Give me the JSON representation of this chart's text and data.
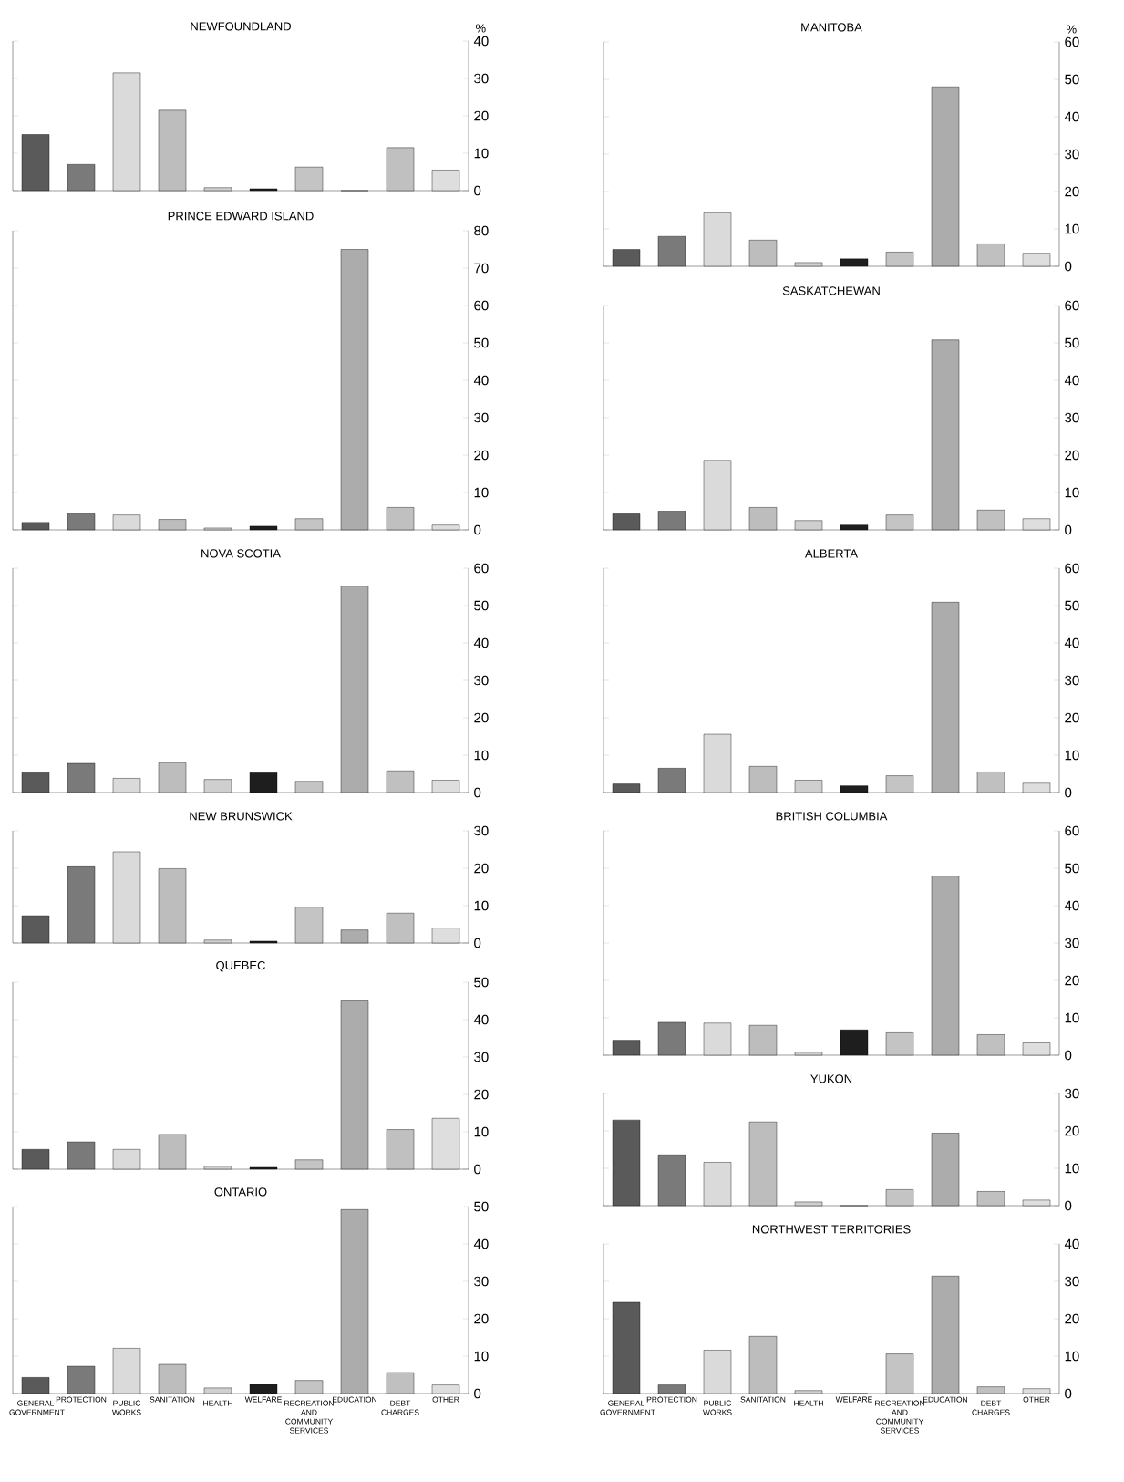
{
  "chart_data": [
    {
      "type": "bar",
      "title": "NEWFOUNDLAND",
      "ylabel": "%",
      "categories": [
        null,
        null,
        null,
        null,
        null,
        null,
        null,
        null,
        null,
        null
      ],
      "values": [
        15,
        7,
        31.5,
        21.5,
        0.8,
        0.5,
        6.3,
        0,
        11.5,
        5.5
      ],
      "colors": [
        "#5a5a5a",
        "#7a7a7a",
        "#dadada",
        "#bdbdbd",
        "#cfcfcf",
        "#1e1e1e",
        "#c4c4c4",
        "#acacac",
        "#c0c0c0",
        "#dedede"
      ],
      "ylim": [
        0,
        40
      ],
      "yticks": [
        0,
        10,
        20,
        30,
        40
      ],
      "tick_labels": "y"
    },
    {
      "type": "bar",
      "title": "PRINCE EDWARD ISLAND",
      "categories": [
        null,
        null,
        null,
        null,
        null,
        null,
        null,
        null,
        null,
        null
      ],
      "values": [
        2,
        4.3,
        4,
        2.8,
        0.5,
        1,
        3,
        75,
        6,
        1.3
      ],
      "colors": [
        "#5a5a5a",
        "#7a7a7a",
        "#dadada",
        "#bdbdbd",
        "#cfcfcf",
        "#1e1e1e",
        "#c4c4c4",
        "#acacac",
        "#c0c0c0",
        "#dedede"
      ],
      "ylim": [
        0,
        80
      ],
      "yticks": [
        0,
        10,
        20,
        30,
        40,
        50,
        60,
        70,
        80
      ],
      "tick_labels": "y"
    },
    {
      "type": "bar",
      "title": "NOVA SCOTIA",
      "categories": [
        null,
        null,
        null,
        null,
        null,
        null,
        null,
        null,
        null,
        null
      ],
      "values": [
        5.3,
        7.8,
        3.8,
        8,
        3.5,
        5.3,
        3,
        55.2,
        5.8,
        3.3
      ],
      "colors": [
        "#5a5a5a",
        "#7a7a7a",
        "#dadada",
        "#bdbdbd",
        "#cfcfcf",
        "#1e1e1e",
        "#c4c4c4",
        "#acacac",
        "#c0c0c0",
        "#dedede"
      ],
      "ylim": [
        0,
        60
      ],
      "yticks": [
        0,
        10,
        20,
        30,
        40,
        50,
        60
      ],
      "tick_labels": "y"
    },
    {
      "type": "bar",
      "title": "NEW BRUNSWICK",
      "categories": [
        null,
        null,
        null,
        null,
        null,
        null,
        null,
        null,
        null,
        null
      ],
      "values": [
        7.3,
        20.4,
        24.4,
        19.9,
        0.8,
        0.5,
        9.6,
        3.5,
        8,
        4
      ],
      "colors": [
        "#5a5a5a",
        "#7a7a7a",
        "#dadada",
        "#bdbdbd",
        "#cfcfcf",
        "#1e1e1e",
        "#c4c4c4",
        "#acacac",
        "#c0c0c0",
        "#dedede"
      ],
      "ylim": [
        0,
        30
      ],
      "yticks": [
        0,
        10,
        20,
        30
      ],
      "tick_labels": "y"
    },
    {
      "type": "bar",
      "title": "QUEBEC",
      "categories": [
        null,
        null,
        null,
        null,
        null,
        null,
        null,
        null,
        null,
        null
      ],
      "values": [
        5.3,
        7.3,
        5.3,
        9.3,
        0.8,
        0.5,
        2.5,
        45,
        10.6,
        13.6
      ],
      "colors": [
        "#5a5a5a",
        "#7a7a7a",
        "#dadada",
        "#bdbdbd",
        "#cfcfcf",
        "#1e1e1e",
        "#c4c4c4",
        "#acacac",
        "#c0c0c0",
        "#dedede"
      ],
      "ylim": [
        0,
        50
      ],
      "yticks": [
        0,
        10,
        20,
        30,
        40,
        50
      ],
      "tick_labels": "y"
    },
    {
      "type": "bar",
      "title": "ONTARIO",
      "categories": [
        "GENERAL GOVERNMENT",
        "PROTECTION",
        "PUBLIC WORKS",
        "SANITATION",
        "HEALTH",
        "WELFARE",
        "RECREATION AND COMMUNITY SERVICES",
        "EDUCATION",
        "DEBT CHARGES",
        "OTHER"
      ],
      "values": [
        4.3,
        7.3,
        12.1,
        7.8,
        1.5,
        2.5,
        3.5,
        49.2,
        5.6,
        2.3
      ],
      "colors": [
        "#5a5a5a",
        "#7a7a7a",
        "#dadada",
        "#bdbdbd",
        "#cfcfcf",
        "#1e1e1e",
        "#c4c4c4",
        "#acacac",
        "#c0c0c0",
        "#dedede"
      ],
      "ylim": [
        0,
        50
      ],
      "yticks": [
        0,
        10,
        20,
        30,
        40,
        50
      ]
    },
    {
      "type": "bar",
      "title": "MANITOBA",
      "ylabel": "%",
      "categories": [
        null,
        null,
        null,
        null,
        null,
        null,
        null,
        null,
        null,
        null
      ],
      "values": [
        4.5,
        8,
        14.3,
        7,
        1,
        2,
        3.8,
        48,
        6,
        3.5
      ],
      "colors": [
        "#5a5a5a",
        "#7a7a7a",
        "#dadada",
        "#bdbdbd",
        "#cfcfcf",
        "#1e1e1e",
        "#c4c4c4",
        "#acacac",
        "#c0c0c0",
        "#dedede"
      ],
      "ylim": [
        0,
        60
      ],
      "yticks": [
        0,
        10,
        20,
        30,
        40,
        50,
        60
      ],
      "tick_labels": "y"
    },
    {
      "type": "bar",
      "title": "SASKATCHEWAN",
      "categories": [
        null,
        null,
        null,
        null,
        null,
        null,
        null,
        null,
        null,
        null
      ],
      "values": [
        4.3,
        5,
        18.6,
        6,
        2.5,
        1.3,
        4,
        50.8,
        5.3,
        3
      ],
      "colors": [
        "#5a5a5a",
        "#7a7a7a",
        "#dadada",
        "#bdbdbd",
        "#cfcfcf",
        "#1e1e1e",
        "#c4c4c4",
        "#acacac",
        "#c0c0c0",
        "#dedede"
      ],
      "ylim": [
        0,
        60
      ],
      "yticks": [
        0,
        10,
        20,
        30,
        40,
        50,
        60
      ],
      "tick_labels": "y"
    },
    {
      "type": "bar",
      "title": "ALBERTA",
      "categories": [
        null,
        null,
        null,
        null,
        null,
        null,
        null,
        null,
        null,
        null
      ],
      "values": [
        2.3,
        6.5,
        15.6,
        7,
        3.3,
        1.8,
        4.5,
        50.9,
        5.5,
        2.5
      ],
      "colors": [
        "#5a5a5a",
        "#7a7a7a",
        "#dadada",
        "#bdbdbd",
        "#cfcfcf",
        "#1e1e1e",
        "#c4c4c4",
        "#acacac",
        "#c0c0c0",
        "#dedede"
      ],
      "ylim": [
        0,
        60
      ],
      "yticks": [
        0,
        10,
        20,
        30,
        40,
        50,
        60
      ],
      "tick_labels": "y"
    },
    {
      "type": "bar",
      "title": "BRITISH COLUMBIA",
      "categories": [
        null,
        null,
        null,
        null,
        null,
        null,
        null,
        null,
        null,
        null
      ],
      "values": [
        4,
        8.8,
        8.6,
        8,
        0.8,
        6.8,
        6,
        47.9,
        5.5,
        3.3
      ],
      "colors": [
        "#5a5a5a",
        "#7a7a7a",
        "#dadada",
        "#bdbdbd",
        "#cfcfcf",
        "#1e1e1e",
        "#c4c4c4",
        "#acacac",
        "#c0c0c0",
        "#dedede"
      ],
      "ylim": [
        0,
        60
      ],
      "yticks": [
        0,
        10,
        20,
        30,
        40,
        50,
        60
      ],
      "tick_labels": "y"
    },
    {
      "type": "bar",
      "title": "YUKON",
      "categories": [
        null,
        null,
        null,
        null,
        null,
        null,
        null,
        null,
        null,
        null
      ],
      "values": [
        22.9,
        13.6,
        11.6,
        22.4,
        1,
        0,
        4.3,
        19.4,
        3.8,
        1.5
      ],
      "colors": [
        "#5a5a5a",
        "#7a7a7a",
        "#dadada",
        "#bdbdbd",
        "#cfcfcf",
        "#1e1e1e",
        "#c4c4c4",
        "#acacac",
        "#c0c0c0",
        "#dedede"
      ],
      "ylim": [
        0,
        30
      ],
      "yticks": [
        0,
        10,
        20,
        30
      ],
      "tick_labels": "y"
    },
    {
      "type": "bar",
      "title": "NORTHWEST TERRITORIES",
      "categories": [
        "GENERAL GOVERNMENT",
        "PROTECTION",
        "PUBLIC WORKS",
        "SANITATION",
        "HEALTH",
        "WELFARE",
        "RECREATION AND COMMUNITY SERVICES",
        "EDUCATION",
        "DEBT CHARGES",
        "OTHER"
      ],
      "values": [
        24.4,
        2.3,
        11.6,
        15.3,
        0.8,
        0,
        10.6,
        31.4,
        1.8,
        1.3
      ],
      "colors": [
        "#5a5a5a",
        "#7a7a7a",
        "#dadada",
        "#bdbdbd",
        "#cfcfcf",
        "#1e1e1e",
        "#c4c4c4",
        "#acacac",
        "#c0c0c0",
        "#dedede"
      ],
      "ylim": [
        0,
        40
      ],
      "yticks": [
        0,
        10,
        20,
        30,
        40
      ]
    }
  ]
}
